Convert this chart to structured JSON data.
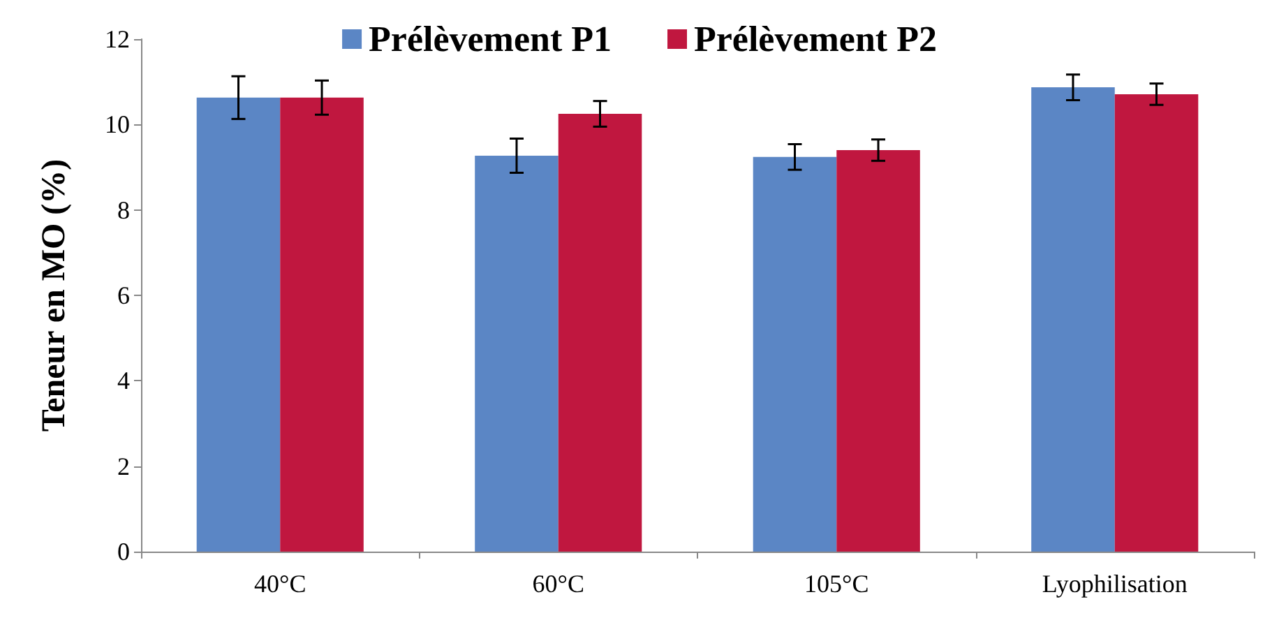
{
  "chart_data": {
    "type": "bar",
    "ylabel": "Teneur en MO (%)",
    "categories": [
      "40°C",
      "60°C",
      "105°C",
      "Lyophilisation"
    ],
    "series": [
      {
        "name": "Prélèvement P1",
        "color": "#5b86c5",
        "values": [
          10.63,
          9.27,
          9.24,
          10.87
        ],
        "errors": [
          0.5,
          0.4,
          0.3,
          0.3
        ]
      },
      {
        "name": "Prélèvement P2",
        "color": "#c0173f",
        "values": [
          10.63,
          10.25,
          9.4,
          10.71
        ],
        "errors": [
          0.4,
          0.3,
          0.25,
          0.25
        ]
      }
    ],
    "ylim": [
      0,
      12
    ],
    "yticks": [
      0,
      2,
      4,
      6,
      8,
      10,
      12
    ],
    "grid": false,
    "legend": "top"
  }
}
